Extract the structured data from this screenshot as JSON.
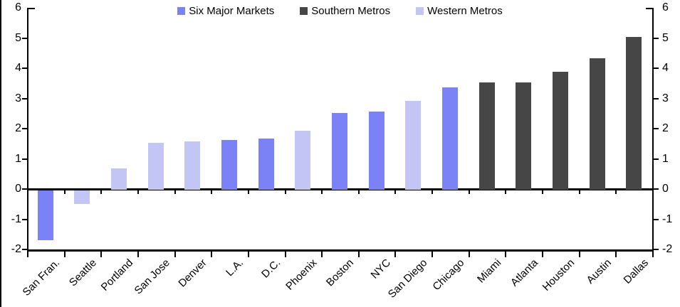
{
  "chart_data": {
    "type": "bar",
    "title": "",
    "ylim": [
      -2,
      6
    ],
    "yticks": [
      6,
      5,
      4,
      3,
      2,
      1,
      0,
      -1,
      -2
    ],
    "grid": false,
    "dual_axis": true,
    "legend_position": "top-center",
    "legend": [
      {
        "name": "Six Major Markets",
        "color": "#7b82f5"
      },
      {
        "name": "Southern Metros",
        "color": "#464646"
      },
      {
        "name": "Western Metros",
        "color": "#c3c5f5"
      }
    ],
    "points": [
      {
        "label": "San Fran.",
        "value": -1.65,
        "series": "Six Major Markets"
      },
      {
        "label": "Seattle",
        "value": -0.45,
        "series": "Western Metros"
      },
      {
        "label": "Portland",
        "value": 0.7,
        "series": "Western Metros"
      },
      {
        "label": "San Jose",
        "value": 1.55,
        "series": "Western Metros"
      },
      {
        "label": "Denver",
        "value": 1.6,
        "series": "Western Metros"
      },
      {
        "label": "L.A.",
        "value": 1.65,
        "series": "Six Major Markets"
      },
      {
        "label": "D.C.",
        "value": 1.7,
        "series": "Six Major Markets"
      },
      {
        "label": "Phoenix",
        "value": 1.95,
        "series": "Western Metros"
      },
      {
        "label": "Boston",
        "value": 2.55,
        "series": "Six Major Markets"
      },
      {
        "label": "NYC",
        "value": 2.6,
        "series": "Six Major Markets"
      },
      {
        "label": "San Diego",
        "value": 2.95,
        "series": "Western Metros"
      },
      {
        "label": "Chicago",
        "value": 3.4,
        "series": "Six Major Markets"
      },
      {
        "label": "Miami",
        "value": 3.55,
        "series": "Southern Metros"
      },
      {
        "label": "Atlanta",
        "value": 3.55,
        "series": "Southern Metros"
      },
      {
        "label": "Houston",
        "value": 3.9,
        "series": "Southern Metros"
      },
      {
        "label": "Austin",
        "value": 4.35,
        "series": "Southern Metros"
      },
      {
        "label": "Dallas",
        "value": 5.05,
        "series": "Southern Metros"
      }
    ]
  }
}
